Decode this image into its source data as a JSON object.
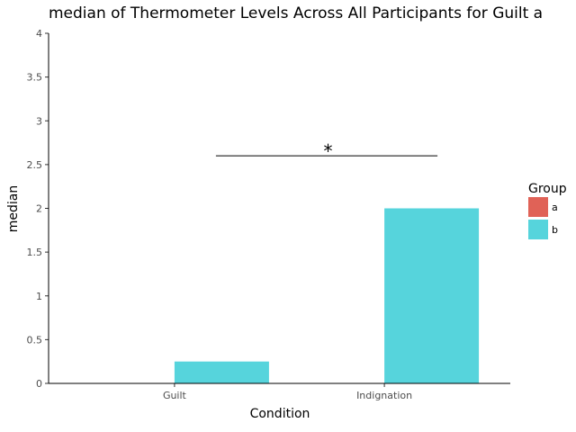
{
  "chart_data": {
    "type": "bar",
    "title": "median of Thermometer Levels Across All Participants for Guilt a",
    "xlabel": "Condition",
    "ylabel": "median",
    "categories": [
      "Guilt",
      "Indignation"
    ],
    "ylim": [
      0,
      4
    ],
    "yticks": [
      "0",
      "0.5",
      "1",
      "1.5",
      "2",
      "2.5",
      "3",
      "3.5",
      "4"
    ],
    "legend": {
      "title": "Group",
      "placement": "right",
      "entries": [
        {
          "label": "a",
          "color": "#e06257"
        },
        {
          "label": "b",
          "color": "#56d4dc"
        }
      ]
    },
    "series": [
      {
        "name": "a",
        "color": "#e06257",
        "values": [
          0,
          0
        ]
      },
      {
        "name": "b",
        "color": "#56d4dc",
        "values": [
          0.25,
          2
        ]
      }
    ],
    "annotation": {
      "text": "*",
      "y": 2.6
    }
  }
}
